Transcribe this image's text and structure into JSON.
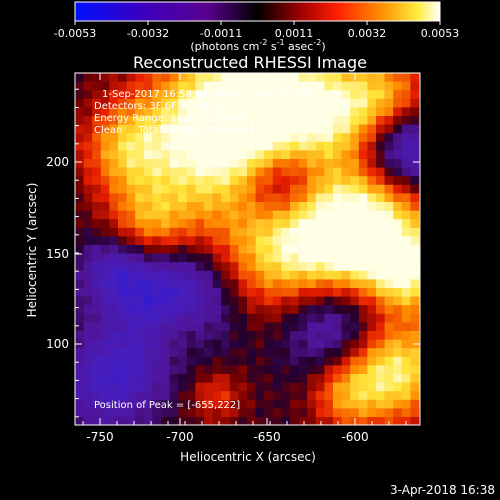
{
  "colorbar": {
    "ticks": [
      "-0.0053",
      "-0.0032",
      "-0.0011",
      "0.0011",
      "0.0032",
      "0.0053"
    ],
    "units_main": "(photons cm",
    "units_exp1": "-2",
    "units_mid": " s",
    "units_exp2": "-1",
    "units_end": " asec",
    "units_exp3": "-2",
    "units_close": ")"
  },
  "title": "Reconstructed RHESSI Image",
  "annotations": {
    "time": "1-Sep-2017 16:58:04.000 to 17:00:32.000",
    "detectors": "Detectors: 3F 6F 8F, Att:0",
    "energy": "Energy Range: 12.0 - 25.0 keV",
    "clean": "Clean     Total counts: 8.54e+03",
    "peak": "Position of Peak = [-655,222]"
  },
  "axes": {
    "xlabel": "Heliocentric X (arcsec)",
    "ylabel": "Heliocentric Y (arcsec)",
    "xticks": [
      "-750",
      "-700",
      "-650",
      "-600"
    ],
    "yticks": [
      "100",
      "150",
      "200"
    ]
  },
  "footer": {
    "date": "3-Apr-2018 16:38"
  },
  "colors": {
    "background": "#000000",
    "cmap_low": "#0000ff",
    "cmap_mid": "#000000",
    "cmap_high": "#ffffff"
  }
}
